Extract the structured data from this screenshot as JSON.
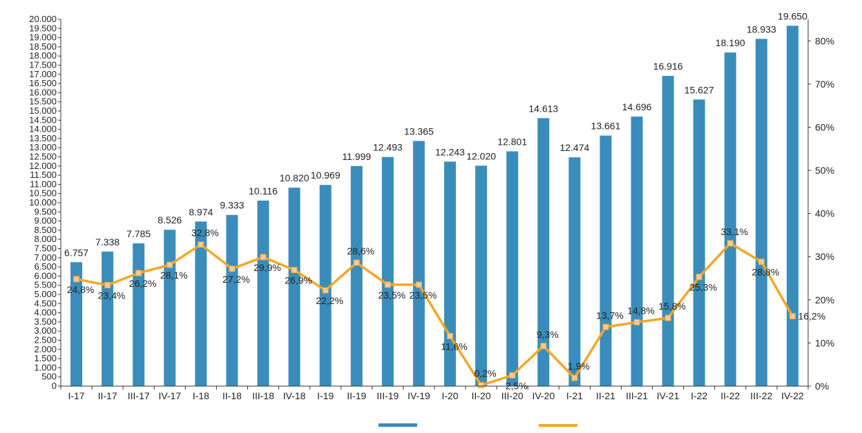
{
  "chart_data": {
    "type": "bar+line",
    "title": "",
    "colors": {
      "bars": "#3a8dbb",
      "line": "#f5a623",
      "line_marker": "#f7c9a0",
      "axis": "#333333"
    },
    "categories": [
      "I-17",
      "II-17",
      "III-17",
      "IV-17",
      "I-18",
      "II-18",
      "III-18",
      "IV-18",
      "I-19",
      "II-19",
      "III-19",
      "IV-19",
      "I-20",
      "II-20",
      "III-20",
      "IV-20",
      "I-21",
      "II-21",
      "III-21",
      "IV-21",
      "I-22",
      "II-22",
      "III-22",
      "IV-22"
    ],
    "series": [
      {
        "type": "bar",
        "axis": "left",
        "values": [
          6757,
          7338,
          7785,
          8526,
          8974,
          9333,
          10116,
          10820,
          10969,
          11999,
          12493,
          13365,
          12243,
          12020,
          12801,
          14613,
          12474,
          13661,
          14696,
          16916,
          15627,
          18190,
          18933,
          19650
        ],
        "labels": [
          "6.757",
          "7.338",
          "7.785",
          "8.526",
          "8.974",
          "9.333",
          "10.116",
          "10.820",
          "10.969",
          "11.999",
          "12.493",
          "13.365",
          "12.243",
          "12.020",
          "12.801",
          "14.613",
          "12.474",
          "13.661",
          "14.696",
          "16.916",
          "15.627",
          "18.190",
          "18.933",
          "19.650"
        ]
      },
      {
        "type": "line",
        "axis": "right",
        "values": [
          24.8,
          23.4,
          26.2,
          28.1,
          32.8,
          27.2,
          29.9,
          26.9,
          22.2,
          28.6,
          23.5,
          23.5,
          11.6,
          0.2,
          2.5,
          9.3,
          1.9,
          13.7,
          14.8,
          15.8,
          25.3,
          33.1,
          28.8,
          16.2
        ],
        "labels": [
          "24,8%",
          "23,4%",
          "26,2%",
          "28,1%",
          "32,8%",
          "27,2%",
          "29,9%",
          "26,9%",
          "22,2%",
          "28,6%",
          "23,5%",
          "23,5%",
          "11,6%",
          "0,2%",
          "2,5%",
          "9,3%",
          "1,9%",
          "13,7%",
          "14,8%",
          "15,8%",
          "25,3%",
          "33,1%",
          "28,8%",
          "16,2%"
        ]
      }
    ],
    "left_axis": {
      "ylim": [
        0,
        20000
      ],
      "ticks": [
        0,
        500,
        1000,
        1500,
        2000,
        2500,
        3000,
        3500,
        4000,
        4500,
        5000,
        5500,
        6000,
        6500,
        7000,
        7500,
        8000,
        8500,
        9000,
        9500,
        10000,
        10500,
        11000,
        11500,
        12000,
        12500,
        13000,
        13500,
        14000,
        14500,
        15000,
        15500,
        16000,
        16500,
        17000,
        17500,
        18000,
        18500,
        19000,
        19500,
        20000
      ],
      "tick_labels": [
        "0",
        "500",
        "1.000",
        "1.500",
        "2.000",
        "2.500",
        "3.000",
        "3.500",
        "4.000",
        "4.500",
        "5.000",
        "5.500",
        "6.000",
        "6.500",
        "7.000",
        "7.500",
        "8.000",
        "8.500",
        "9.000",
        "9.500",
        "10.000",
        "10.500",
        "11.000",
        "11.500",
        "12.000",
        "12.500",
        "13.000",
        "13.500",
        "14.000",
        "14.500",
        "15.000",
        "15.500",
        "16.000",
        "16.500",
        "17.000",
        "17.500",
        "18.000",
        "18.500",
        "19.000",
        "19.500",
        "20.000"
      ]
    },
    "right_axis": {
      "ylim": [
        0,
        85
      ],
      "ticks": [
        0,
        10,
        20,
        30,
        40,
        50,
        60,
        70,
        80
      ],
      "tick_labels": [
        "0%",
        "10%",
        "20%",
        "30%",
        "40%",
        "50%",
        "60%",
        "70%",
        "80%"
      ]
    },
    "legend": {
      "position": "bottom-center"
    },
    "grid": false
  }
}
